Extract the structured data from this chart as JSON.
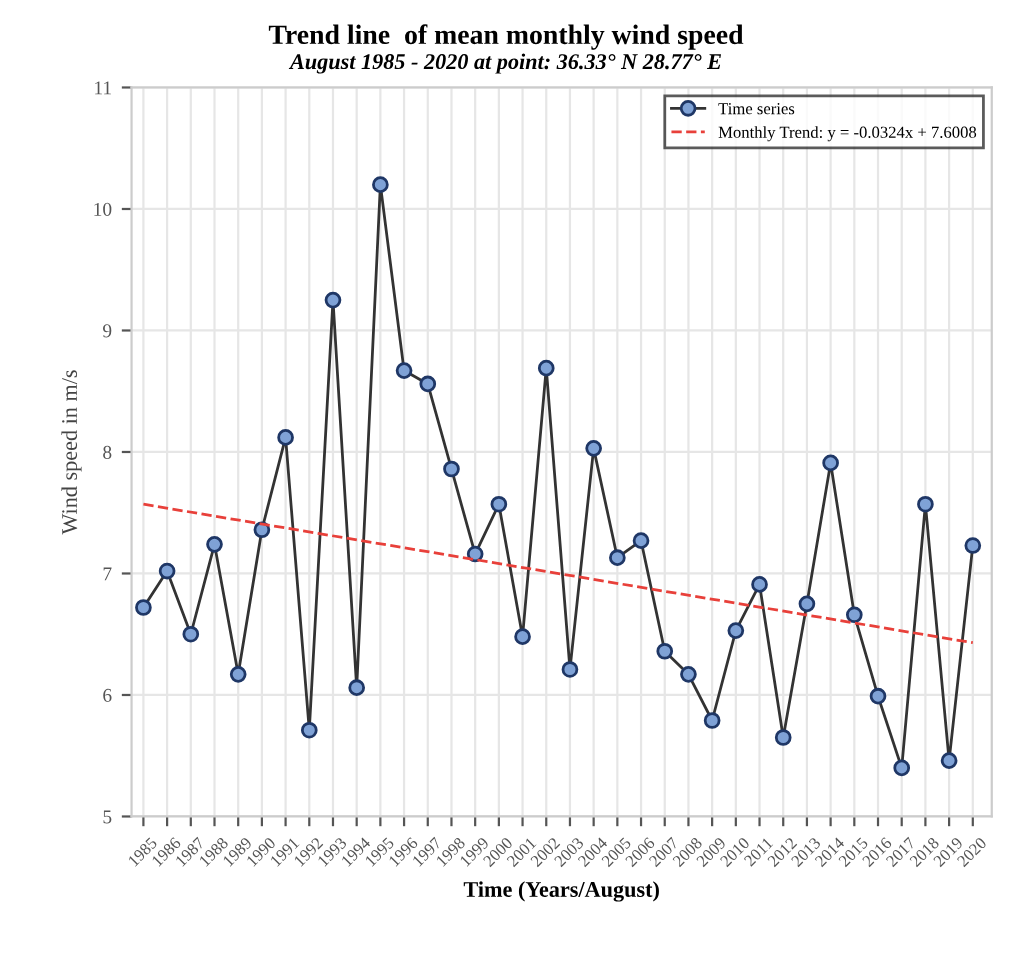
{
  "chart_data": {
    "type": "line",
    "title": "Trend line  of mean monthly wind speed",
    "subtitle": "August 1985 - 2020 at point: 36.33° N 28.77° E",
    "xlabel": "Time (Years/August)",
    "ylabel": "Wind speed in m/s",
    "x": [
      1985,
      1986,
      1987,
      1988,
      1989,
      1990,
      1991,
      1992,
      1993,
      1994,
      1995,
      1996,
      1997,
      1998,
      1999,
      2000,
      2001,
      2002,
      2003,
      2004,
      2005,
      2006,
      2007,
      2008,
      2009,
      2010,
      2011,
      2012,
      2013,
      2014,
      2015,
      2016,
      2017,
      2018,
      2019,
      2020
    ],
    "series": [
      {
        "name": "Time series",
        "color": "#333333",
        "marker": "circle",
        "line_style": "solid",
        "values": [
          6.72,
          7.02,
          6.5,
          7.24,
          6.17,
          7.36,
          8.12,
          5.71,
          9.25,
          6.06,
          10.2,
          8.67,
          8.56,
          7.86,
          7.16,
          7.57,
          6.48,
          8.69,
          6.21,
          8.03,
          7.13,
          7.27,
          6.36,
          6.17,
          5.79,
          6.53,
          6.91,
          5.65,
          6.75,
          7.91,
          6.66,
          5.99,
          5.4,
          7.57,
          5.46,
          7.23
        ]
      },
      {
        "name": "Monthly Trend: y = -0.0324x + 7.6008",
        "color": "#e8403a",
        "marker": "none",
        "line_style": "dashed",
        "x": [
          1985,
          2020
        ],
        "values": [
          7.57,
          6.43
        ]
      }
    ],
    "xlim": [
      1984.5,
      2020.8
    ],
    "xticks": [
      1985,
      1986,
      1987,
      1988,
      1989,
      1990,
      1991,
      1992,
      1993,
      1994,
      1995,
      1996,
      1997,
      1998,
      1999,
      2000,
      2001,
      2002,
      2003,
      2004,
      2005,
      2006,
      2007,
      2008,
      2009,
      2010,
      2011,
      2012,
      2013,
      2014,
      2015,
      2016,
      2017,
      2018,
      2019,
      2020
    ],
    "ylim": [
      5,
      11
    ],
    "yticks": [
      5,
      6,
      7,
      8,
      9,
      10,
      11
    ],
    "grid": true,
    "legend": "top right"
  }
}
